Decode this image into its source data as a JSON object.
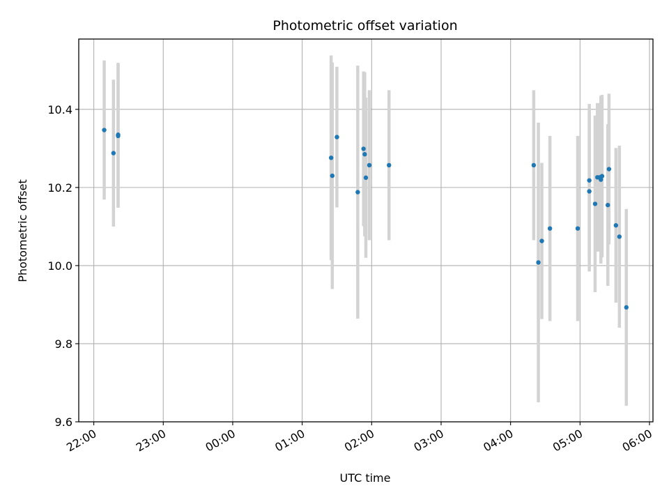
{
  "chart_data": {
    "type": "scatter",
    "title": "Photometric offset variation",
    "xlabel": "UTC time",
    "ylabel": "Photometric offset",
    "x_axis_kind": "time (HH:MM)",
    "xlim": [
      "21:47",
      "06:03"
    ],
    "ylim": [
      9.6,
      10.58
    ],
    "x_ticks": [
      "22:00",
      "23:00",
      "00:00",
      "01:00",
      "02:00",
      "03:00",
      "04:00",
      "05:00",
      "06:00"
    ],
    "y_ticks": [
      "9.6",
      "9.8",
      "10.0",
      "10.2",
      "10.4"
    ],
    "grid": true,
    "marker_color": "#1f77b4",
    "errorbar_color": "#d3d3d3",
    "series": [
      {
        "points": [
          {
            "x": "22:09",
            "y": 10.347,
            "yerr": 0.178
          },
          {
            "x": "22:17",
            "y": 10.288,
            "yerr": 0.188
          },
          {
            "x": "22:21",
            "y": 10.332,
            "yerr": 0.184
          },
          {
            "x": "22:21",
            "y": 10.335,
            "yerr": 0.184
          },
          {
            "x": "01:25",
            "y": 10.276,
            "yerr": 0.262
          },
          {
            "x": "01:26",
            "y": 10.23,
            "yerr": 0.29
          },
          {
            "x": "01:30",
            "y": 10.329,
            "yerr": 0.18
          },
          {
            "x": "01:48",
            "y": 10.188,
            "yerr": 0.324
          },
          {
            "x": "01:53",
            "y": 10.299,
            "yerr": 0.198
          },
          {
            "x": "01:54",
            "y": 10.285,
            "yerr": 0.21
          },
          {
            "x": "01:55",
            "y": 10.225,
            "yerr": 0.205
          },
          {
            "x": "01:58",
            "y": 10.257,
            "yerr": 0.192
          },
          {
            "x": "02:15",
            "y": 10.257,
            "yerr": 0.192
          },
          {
            "x": "04:20",
            "y": 10.257,
            "yerr": 0.192
          },
          {
            "x": "04:24",
            "y": 10.008,
            "yerr": 0.358
          },
          {
            "x": "04:27",
            "y": 10.063,
            "yerr": 0.2
          },
          {
            "x": "04:34",
            "y": 10.095,
            "yerr": 0.237
          },
          {
            "x": "04:58",
            "y": 10.095,
            "yerr": 0.237
          },
          {
            "x": "05:08",
            "y": 10.218,
            "yerr": 0.196
          },
          {
            "x": "05:08",
            "y": 10.19,
            "yerr": 0.205
          },
          {
            "x": "05:13",
            "y": 10.158,
            "yerr": 0.226
          },
          {
            "x": "05:15",
            "y": 10.226,
            "yerr": 0.19
          },
          {
            "x": "05:17",
            "y": 10.226,
            "yerr": 0.19
          },
          {
            "x": "05:18",
            "y": 10.22,
            "yerr": 0.215
          },
          {
            "x": "05:19",
            "y": 10.229,
            "yerr": 0.208
          },
          {
            "x": "05:24",
            "y": 10.155,
            "yerr": 0.207
          },
          {
            "x": "05:25",
            "y": 10.247,
            "yerr": 0.193
          },
          {
            "x": "05:31",
            "y": 10.103,
            "yerr": 0.198
          },
          {
            "x": "05:34",
            "y": 10.074,
            "yerr": 0.233
          },
          {
            "x": "05:40",
            "y": 9.893,
            "yerr": 0.252
          }
        ]
      }
    ]
  }
}
